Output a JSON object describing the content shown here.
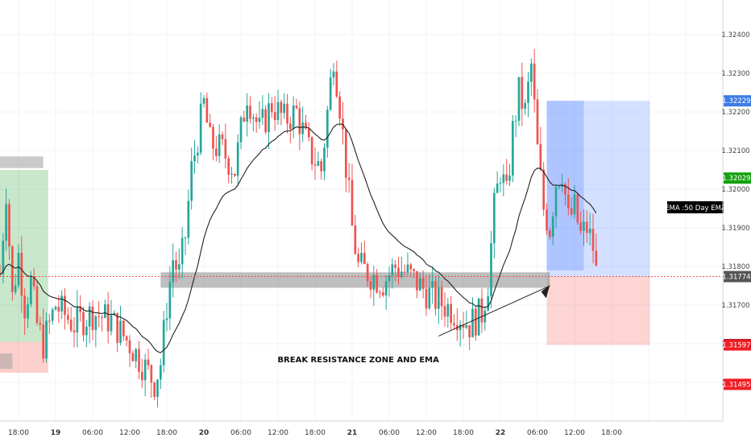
{
  "chart_data": {
    "type": "candlestick",
    "title": "",
    "instrument_note": "",
    "y_axis": {
      "ticks": [
        1.324,
        1.323,
        1.322,
        1.321,
        1.32,
        1.319,
        1.318,
        1.317,
        1.316,
        1.315
      ],
      "tick_labels": [
        "1.32400",
        "1.32300",
        "1.32200",
        "1.32100",
        "1.32000",
        "1.31900",
        "1.31800",
        "1.31700",
        "1.31600",
        "1.31500"
      ],
      "range": [
        1.314,
        1.3249
      ]
    },
    "x_axis": {
      "labels": [
        "18:00",
        "19",
        "06:00",
        "12:00",
        "18:00",
        "20",
        "06:00",
        "12:00",
        "18:00",
        "21",
        "06:00",
        "12:00",
        "18:00",
        "22",
        "06:00",
        "12:00",
        "18:00"
      ],
      "bold_labels": [
        "19",
        "20",
        "21",
        "22"
      ],
      "range_hours": [
        -9,
        108
      ]
    },
    "price_markers": [
      {
        "value": "1.32229",
        "price": 1.32229,
        "color": "#3d7be6"
      },
      {
        "value": "1.32029",
        "price": 1.32029,
        "color": "#13a10e"
      },
      {
        "value": "1.31774",
        "price": 1.31774,
        "color": "#555555"
      },
      {
        "value": "1.31598",
        "price": 1.31598,
        "color": "#333333"
      },
      {
        "value": "1.31597",
        "price": 1.31597,
        "color": "#ef1c24"
      },
      {
        "value": "1.31495",
        "price": 1.31495,
        "color": "#ef1c24"
      }
    ],
    "current_price_line": 1.31774,
    "ema_label": "EMA :50 Day EMA",
    "annotation": "BREAK RESISTANCE ZONE AND EMA",
    "zones": {
      "left_gray_top": {
        "t0": -9,
        "t1": -2,
        "p0": 1.32055,
        "p1": 1.32085
      },
      "left_gray_bottom": {
        "t0": -9,
        "t1": -7,
        "p0": 1.31575,
        "p1": 1.31535
      },
      "left_green": {
        "t0": -9,
        "t1": -1.2,
        "p0": 1.3205,
        "p1": 1.31605
      },
      "left_red": {
        "t0": -9,
        "t1": -1.2,
        "p0": 1.31605,
        "p1": 1.31525
      },
      "resistance_gray": {
        "t0": 17,
        "t1": 80,
        "p0": 1.31785,
        "p1": 1.31745
      },
      "long_blue": {
        "t0": 79.5,
        "t1": 96.2,
        "p0": 1.32229,
        "p1": 1.31774
      },
      "long_blue_dark": {
        "t0": 79.5,
        "t1": 85.5,
        "p0": 1.32229,
        "p1": 1.3179
      },
      "long_red": {
        "t0": 79.5,
        "t1": 96.2,
        "p0": 1.31774,
        "p1": 1.31597
      }
    },
    "colors": {
      "bull": "#26a69a",
      "bear": "#ef5350",
      "ema": "#222222",
      "grid": "#f0f3fa"
    }
  }
}
